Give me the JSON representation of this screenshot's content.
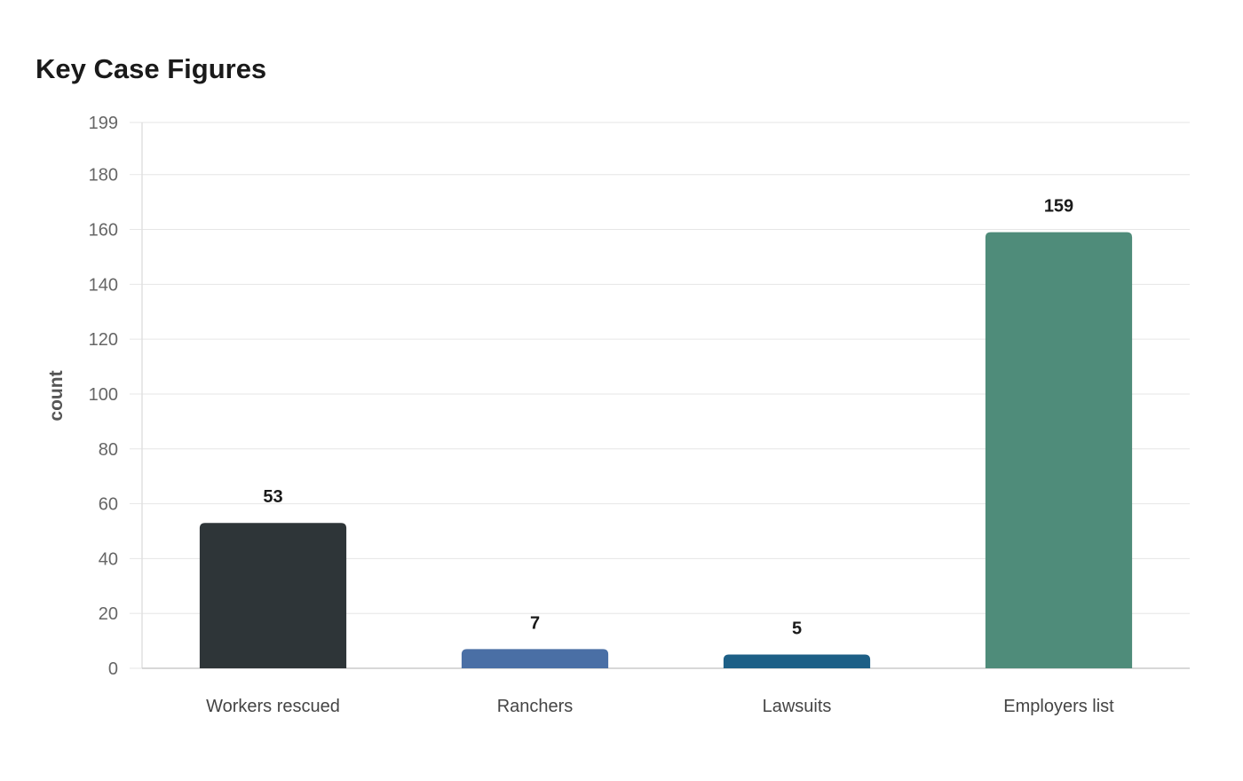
{
  "chart_data": {
    "type": "bar",
    "title": "Key Case Figures",
    "xlabel": "",
    "ylabel": "count",
    "categories": [
      "Workers rescued",
      "Ranchers",
      "Lawsuits",
      "Employers list"
    ],
    "values": [
      53,
      7,
      5,
      159
    ],
    "colors": [
      "#2e3538",
      "#4a6fa5",
      "#1d5f86",
      "#4f8c7a"
    ],
    "ylim": [
      0,
      199
    ],
    "yticks": [
      0,
      20,
      40,
      60,
      80,
      100,
      120,
      140,
      160,
      180,
      199
    ],
    "grid": true,
    "data_labels": true
  }
}
